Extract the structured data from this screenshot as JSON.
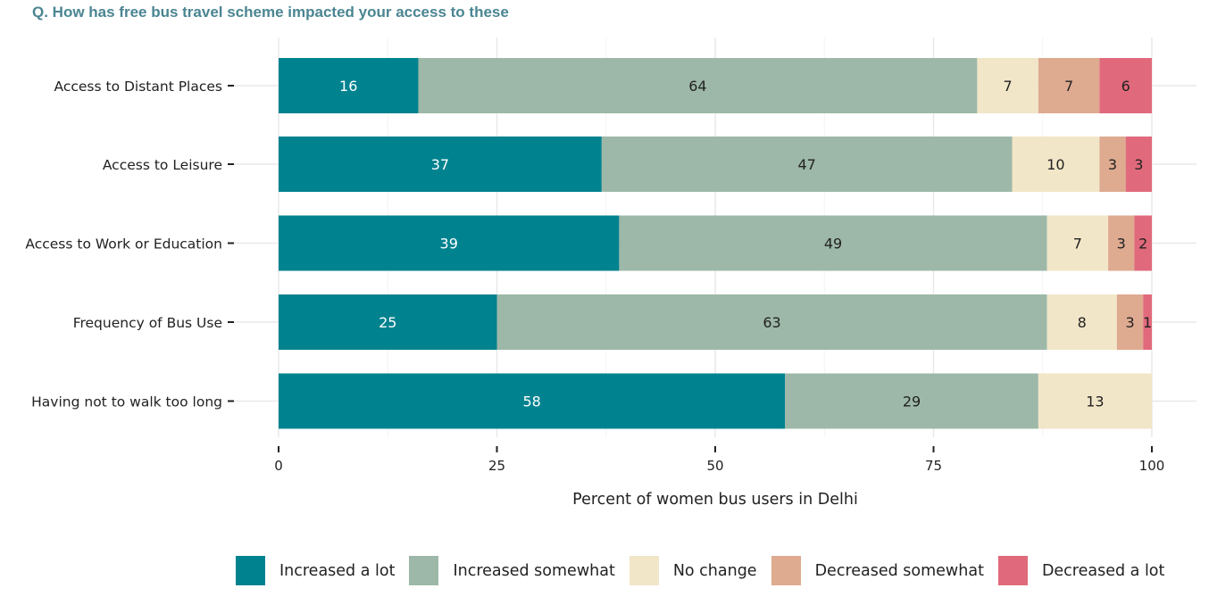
{
  "chart_data": {
    "type": "bar",
    "orientation": "horizontal",
    "stacked": true,
    "title": "Q. How has free bus travel scheme impacted your access to these",
    "xlabel": "Percent of women bus users in Delhi",
    "ylabel": "",
    "xlim": [
      0,
      100
    ],
    "xticks": [
      "0",
      "25",
      "50",
      "75",
      "100"
    ],
    "grid": true,
    "legend_position": "bottom",
    "categories": [
      "Access to Distant Places",
      "Access to Leisure",
      "Access to Work or Education",
      "Frequency of Bus Use",
      "Having not to walk too long"
    ],
    "series": [
      {
        "name": "Increased a lot",
        "color": "#00828f",
        "label_color": "#ffffff",
        "values": [
          16,
          37,
          39,
          25,
          58
        ],
        "labels": [
          "16",
          "37",
          "39",
          "25",
          "58"
        ]
      },
      {
        "name": "Increased somewhat",
        "color": "#9db8a8",
        "label_color": "#222222",
        "values": [
          64,
          47,
          49,
          63,
          29
        ],
        "labels": [
          "64",
          "47",
          "49",
          "63",
          "29"
        ]
      },
      {
        "name": "No change",
        "color": "#f2e6c8",
        "label_color": "#222222",
        "values": [
          7,
          10,
          7,
          8,
          13
        ],
        "labels": [
          "7",
          "10",
          "7",
          "8",
          "13"
        ]
      },
      {
        "name": "Decreased somewhat",
        "color": "#deaa90",
        "label_color": "#222222",
        "values": [
          7,
          3,
          3,
          3,
          0
        ],
        "labels": [
          "7",
          "3",
          "3",
          "3",
          ""
        ]
      },
      {
        "name": "Decreased a lot",
        "color": "#e06a7c",
        "label_color": "#222222",
        "values": [
          6,
          3,
          2,
          1,
          0
        ],
        "labels": [
          "6",
          "3",
          "2",
          "1",
          ""
        ]
      }
    ]
  }
}
